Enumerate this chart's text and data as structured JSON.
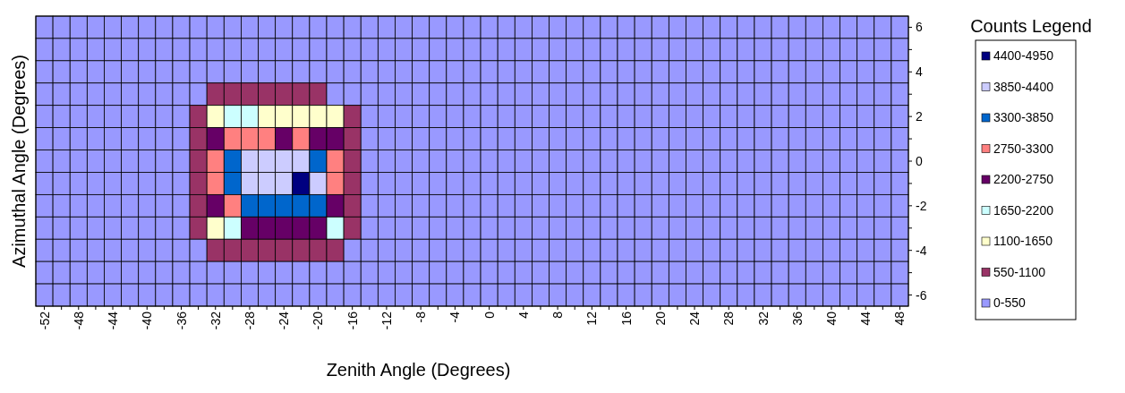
{
  "chart_data": {
    "type": "heatmap",
    "xlabel": "Zenith Angle (Degrees)",
    "ylabel": "Azimuthal Angle (Degrees)",
    "legend_title": "Counts Legend",
    "categories": [
      "-52",
      null,
      "-48",
      null,
      "-44",
      null,
      "-40",
      null,
      "-36",
      null,
      "-32",
      null,
      "-28",
      null,
      "-24",
      null,
      "-20",
      null,
      "-16",
      null,
      "-12",
      null,
      "-8",
      null,
      "-4",
      null,
      "0",
      null,
      "4",
      null,
      "8",
      null,
      "12",
      null,
      "16",
      null,
      "20",
      null,
      "24",
      null,
      "28",
      null,
      "32",
      null,
      "36",
      null,
      "40",
      null,
      "44",
      null,
      "48"
    ],
    "y_categories": [
      "6",
      null,
      "4",
      null,
      "2",
      null,
      "0",
      null,
      "-2",
      null,
      "-4",
      null,
      "-6"
    ],
    "cticks": [
      {
        "value": 4675,
        "label": "4400-4950"
      },
      {
        "value": 4125,
        "label": "3850-4400"
      },
      {
        "value": 3575,
        "label": "3300-3850"
      },
      {
        "value": 3025,
        "label": "2750-3300"
      },
      {
        "value": 2475,
        "label": "2200-2750"
      },
      {
        "value": 1925,
        "label": "1650-2200"
      },
      {
        "value": 1375,
        "label": "1100-1650"
      },
      {
        "value": 825,
        "label": "550-1100"
      },
      {
        "value": 275,
        "label": "0-550"
      }
    ],
    "colors": [
      "#000080",
      "#ccccff",
      "#0066cc",
      "#ff8080",
      "#660066",
      "#ccffff",
      "#ffffcc",
      "#993366",
      "#9999ff"
    ],
    "cells": [
      [
        275,
        275,
        275,
        275,
        275,
        275,
        275,
        275,
        275,
        275,
        275,
        275,
        275,
        275,
        275,
        275,
        275,
        275,
        275,
        275,
        275,
        275,
        275,
        275,
        275,
        275,
        275,
        275,
        275,
        275,
        275,
        275,
        275,
        275,
        275,
        275,
        275,
        275,
        275,
        275,
        275,
        275,
        275,
        275,
        275,
        275,
        275,
        275,
        275,
        275,
        275
      ],
      [
        275,
        275,
        275,
        275,
        275,
        275,
        275,
        275,
        275,
        275,
        275,
        275,
        275,
        275,
        275,
        275,
        275,
        275,
        275,
        275,
        275,
        275,
        275,
        275,
        275,
        275,
        275,
        275,
        275,
        275,
        275,
        275,
        275,
        275,
        275,
        275,
        275,
        275,
        275,
        275,
        275,
        275,
        275,
        275,
        275,
        275,
        275,
        275,
        275,
        275,
        275
      ],
      [
        275,
        275,
        275,
        275,
        275,
        275,
        275,
        275,
        275,
        275,
        275,
        275,
        275,
        275,
        275,
        275,
        275,
        275,
        275,
        275,
        275,
        275,
        275,
        275,
        275,
        275,
        275,
        275,
        275,
        275,
        275,
        275,
        275,
        275,
        275,
        275,
        275,
        275,
        275,
        275,
        275,
        275,
        275,
        275,
        275,
        275,
        275,
        275,
        275,
        275,
        275
      ],
      [
        275,
        275,
        275,
        275,
        275,
        275,
        275,
        275,
        275,
        275,
        825,
        825,
        825,
        825,
        825,
        825,
        825,
        275,
        275,
        275,
        275,
        275,
        275,
        275,
        275,
        275,
        275,
        275,
        275,
        275,
        275,
        275,
        275,
        275,
        275,
        275,
        275,
        275,
        275,
        275,
        275,
        275,
        275,
        275,
        275,
        275,
        275,
        275,
        275,
        275,
        275
      ],
      [
        275,
        275,
        275,
        275,
        275,
        275,
        275,
        275,
        275,
        825,
        1375,
        1925,
        1925,
        1375,
        1375,
        1375,
        1375,
        1375,
        825,
        275,
        275,
        275,
        275,
        275,
        275,
        275,
        275,
        275,
        275,
        275,
        275,
        275,
        275,
        275,
        275,
        275,
        275,
        275,
        275,
        275,
        275,
        275,
        275,
        275,
        275,
        275,
        275,
        275,
        275,
        275,
        275
      ],
      [
        275,
        275,
        275,
        275,
        275,
        275,
        275,
        275,
        275,
        825,
        2475,
        3025,
        3025,
        3025,
        2475,
        3025,
        2475,
        2475,
        825,
        275,
        275,
        275,
        275,
        275,
        275,
        275,
        275,
        275,
        275,
        275,
        275,
        275,
        275,
        275,
        275,
        275,
        275,
        275,
        275,
        275,
        275,
        275,
        275,
        275,
        275,
        275,
        275,
        275,
        275,
        275,
        275
      ],
      [
        275,
        275,
        275,
        275,
        275,
        275,
        275,
        275,
        275,
        825,
        3025,
        3575,
        4125,
        4125,
        4125,
        4125,
        3575,
        3025,
        825,
        275,
        275,
        275,
        275,
        275,
        275,
        275,
        275,
        275,
        275,
        275,
        275,
        275,
        275,
        275,
        275,
        275,
        275,
        275,
        275,
        275,
        275,
        275,
        275,
        275,
        275,
        275,
        275,
        275,
        275,
        275,
        275
      ],
      [
        275,
        275,
        275,
        275,
        275,
        275,
        275,
        275,
        275,
        825,
        3025,
        3575,
        4125,
        4125,
        4125,
        4675,
        4125,
        3025,
        825,
        275,
        275,
        275,
        275,
        275,
        275,
        275,
        275,
        275,
        275,
        275,
        275,
        275,
        275,
        275,
        275,
        275,
        275,
        275,
        275,
        275,
        275,
        275,
        275,
        275,
        275,
        275,
        275,
        275,
        275,
        275,
        275
      ],
      [
        275,
        275,
        275,
        275,
        275,
        275,
        275,
        275,
        275,
        825,
        2475,
        3025,
        3575,
        3575,
        3575,
        3575,
        3575,
        2475,
        825,
        275,
        275,
        275,
        275,
        275,
        275,
        275,
        275,
        275,
        275,
        275,
        275,
        275,
        275,
        275,
        275,
        275,
        275,
        275,
        275,
        275,
        275,
        275,
        275,
        275,
        275,
        275,
        275,
        275,
        275,
        275,
        275
      ],
      [
        275,
        275,
        275,
        275,
        275,
        275,
        275,
        275,
        275,
        825,
        1375,
        1925,
        2475,
        2475,
        2475,
        2475,
        2475,
        1925,
        825,
        275,
        275,
        275,
        275,
        275,
        275,
        275,
        275,
        275,
        275,
        275,
        275,
        275,
        275,
        275,
        275,
        275,
        275,
        275,
        275,
        275,
        275,
        275,
        275,
        275,
        275,
        275,
        275,
        275,
        275,
        275,
        275
      ],
      [
        275,
        275,
        275,
        275,
        275,
        275,
        275,
        275,
        275,
        275,
        825,
        825,
        825,
        825,
        825,
        825,
        825,
        825,
        275,
        275,
        275,
        275,
        275,
        275,
        275,
        275,
        275,
        275,
        275,
        275,
        275,
        275,
        275,
        275,
        275,
        275,
        275,
        275,
        275,
        275,
        275,
        275,
        275,
        275,
        275,
        275,
        275,
        275,
        275,
        275,
        275
      ],
      [
        275,
        275,
        275,
        275,
        275,
        275,
        275,
        275,
        275,
        275,
        275,
        275,
        275,
        275,
        275,
        275,
        275,
        275,
        275,
        275,
        275,
        275,
        275,
        275,
        275,
        275,
        275,
        275,
        275,
        275,
        275,
        275,
        275,
        275,
        275,
        275,
        275,
        275,
        275,
        275,
        275,
        275,
        275,
        275,
        275,
        275,
        275,
        275,
        275,
        275,
        275
      ],
      [
        275,
        275,
        275,
        275,
        275,
        275,
        275,
        275,
        275,
        275,
        275,
        275,
        275,
        275,
        275,
        275,
        275,
        275,
        275,
        275,
        275,
        275,
        275,
        275,
        275,
        275,
        275,
        275,
        275,
        275,
        275,
        275,
        275,
        275,
        275,
        275,
        275,
        275,
        275,
        275,
        275,
        275,
        275,
        275,
        275,
        275,
        275,
        275,
        275,
        275,
        275
      ]
    ]
  }
}
